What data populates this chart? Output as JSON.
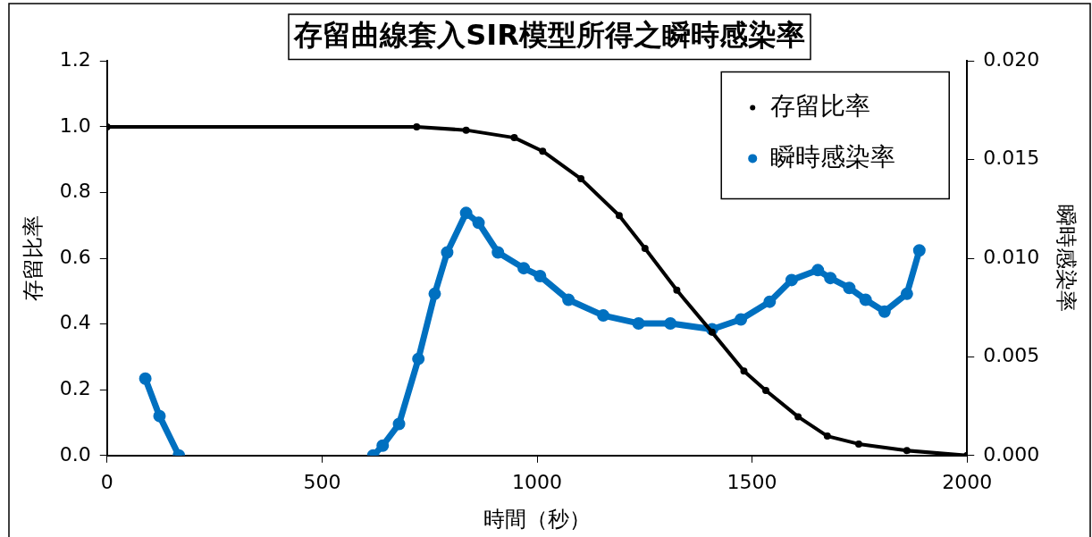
{
  "chart_data": {
    "type": "line",
    "title": "存留曲線套入SIR模型所得之瞬時感染率",
    "xlabel": "時間（秒）",
    "ylabel": "存留比率",
    "y2label": "瞬時感染率",
    "series": [
      {
        "name": "存留比率",
        "color": "#000000",
        "x": [
          0,
          720,
          835,
          947,
          1013,
          1102,
          1191,
          1251,
          1325,
          1407,
          1481,
          1532,
          1607,
          1675,
          1748,
          1860,
          2000
        ],
        "values": [
          1.0,
          1.0,
          0.99,
          0.967,
          0.926,
          0.842,
          0.73,
          0.63,
          0.503,
          0.375,
          0.257,
          0.198,
          0.118,
          0.059,
          0.035,
          0.015,
          0.0
        ]
      },
      {
        "name": "瞬時感染率",
        "color": "#0070c0",
        "axis": "y2",
        "x": [
          89,
          122,
          167,
          400,
          619,
          641,
          679,
          724,
          762,
          791,
          835,
          864,
          909,
          969,
          1007,
          1073,
          1154,
          1236,
          1310,
          1407,
          1474,
          1541,
          1592,
          1653,
          1682,
          1726,
          1764,
          1808,
          1860,
          1889
        ],
        "values": [
          0.0039,
          0.002,
          0.0,
          null,
          0.0,
          0.0005,
          0.0016,
          0.0049,
          0.0082,
          0.0103,
          0.0123,
          0.0118,
          0.0103,
          0.0095,
          0.0091,
          0.0079,
          0.0071,
          0.0067,
          0.0067,
          0.0064,
          0.0069,
          0.0078,
          0.0089,
          0.0094,
          0.009,
          0.0085,
          0.0079,
          0.0073,
          0.0082,
          0.0104
        ]
      }
    ],
    "xlim": [
      0,
      2000
    ],
    "xticks": [
      0,
      500,
      1000,
      1500,
      2000
    ],
    "ylim": [
      0,
      1.2
    ],
    "yticks": [
      {
        "value": 0,
        "label": "0.0"
      },
      0.2,
      0.4,
      0.6,
      0.8,
      {
        "value": 1,
        "label": "1.0"
      },
      1.2
    ],
    "y2lim": [
      0,
      0.02
    ],
    "y2ticks": [
      {
        "value": 0,
        "label": "0.000"
      },
      {
        "value": 0.005,
        "label": "0.005"
      },
      {
        "value": 0.01,
        "label": "0.010"
      },
      {
        "value": 0.015,
        "label": "0.015"
      },
      {
        "value": 0.02,
        "label": "0.020"
      }
    ],
    "legend": "top right",
    "marker": "circle",
    "grid": false
  }
}
